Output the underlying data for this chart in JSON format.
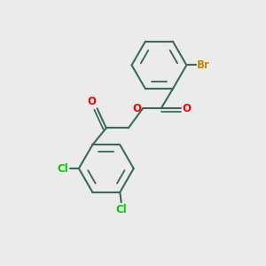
{
  "background_color": "#ebebeb",
  "bond_color": "#3a6b5a",
  "bond_width": 1.5,
  "atom_colors": {
    "O": "#ff0000",
    "Cl": "#00cc00",
    "Br": "#cc8800",
    "C": "#3a6b5a"
  },
  "font_size": 8.5,
  "fig_size": [
    3.0,
    3.0
  ],
  "dpi": 100,
  "xlim": [
    0,
    10
  ],
  "ylim": [
    0,
    10
  ]
}
